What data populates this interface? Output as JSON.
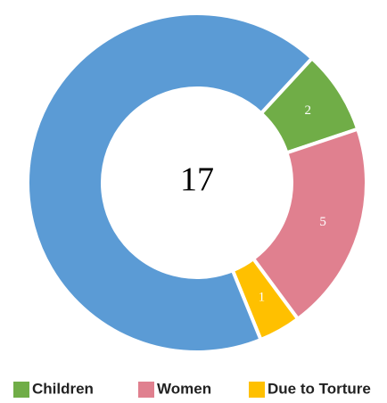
{
  "chart_data": {
    "type": "donut",
    "categories": [
      "Children",
      "Women",
      "Due to Torture",
      null
    ],
    "values": [
      2,
      5,
      1,
      17
    ],
    "colors": [
      "#70ad47",
      "#e0808f",
      "#ffc000",
      "#5b9bd5"
    ],
    "legend": "bottom"
  }
}
